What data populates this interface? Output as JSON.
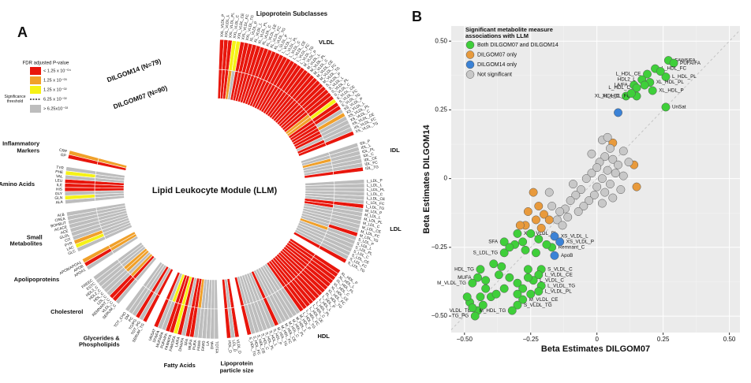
{
  "chart_data": [
    {
      "type": "heatmap",
      "panel": "A",
      "header": "Lipoprotein Subclasses",
      "title": "Lipid Leukocyte Module (LLM)",
      "rings": [
        "DILGOM07 (N=90)",
        "DILGOM14 (N=79)"
      ],
      "legend": {
        "title": "FDR adjusted P-value",
        "levels": [
          {
            "label": "< 1.25 x 10⁻⁰⁴",
            "color": "#e8160c"
          },
          {
            "label": "1.25 x 10⁻⁰³",
            "color": "#f0a02a"
          },
          {
            "label": "1.25 x 10⁻⁰²",
            "color": "#f6f216"
          },
          {
            "label": "> 6.25x10⁻⁰²",
            "color": "#bdbdbd"
          }
        ],
        "threshold": {
          "label": "6.25 x 10⁻⁰²",
          "name": "Significance threshold"
        }
      },
      "groups": [
        {
          "label": "VLDL",
          "names": [
            "XXL_VLDL_P",
            "XXL_VLDL_L",
            "XXL_VLDL_PL",
            "XXL_VLDL_C",
            "XXL_VLDL_CE",
            "XXL_VLDL_FC",
            "XXL_VLDL_TG",
            "XL_VLDL_P",
            "XL_VLDL_L",
            "XL_VLDL_PL",
            "XL_VLDL_C",
            "XL_VLDL_CE",
            "XL_VLDL_FC",
            "XL_VLDL_TG",
            "L_VLDL_P",
            "L_VLDL_L",
            "L_VLDL_PL",
            "L_VLDL_C",
            "L_VLDL_CE",
            "L_VLDL_FC",
            "L_VLDL_TG",
            "M_VLDL_P",
            "M_VLDL_L",
            "M_VLDL_PL",
            "M_VLDL_C",
            "M_VLDL_CE",
            "M_VLDL_FC",
            "M_VLDL_TG",
            "S_VLDL_P",
            "S_VLDL_L",
            "S_VLDL_PL",
            "S_VLDL_C",
            "S_VLDL_CE",
            "S_VLDL_FC",
            "S_VLDL_TG",
            "XS_VLDL_P",
            "XS_VLDL_L",
            "XS_VLDL_PL",
            "XS_VLDL_C",
            "XS_VLDL_CE",
            "XS_VLDL_FC",
            "XS_VLDL_TG"
          ],
          "dilgom07": [
            0,
            0,
            0,
            1,
            3,
            0,
            0,
            0,
            0,
            0,
            0,
            0,
            0,
            0,
            0,
            0,
            0,
            0,
            0,
            0,
            0,
            0,
            0,
            0,
            0,
            0,
            0,
            0,
            0,
            0,
            0,
            1,
            1,
            0,
            0,
            0,
            0,
            0,
            0,
            3,
            0,
            0
          ],
          "dilgom14": [
            0,
            0,
            0,
            2,
            2,
            0,
            0,
            0,
            0,
            0,
            0,
            0,
            0,
            0,
            0,
            0,
            0,
            0,
            0,
            0,
            0,
            0,
            0,
            0,
            0,
            0,
            0,
            0,
            0,
            0,
            0,
            0,
            2,
            0,
            0,
            3,
            1,
            3,
            3,
            3,
            3,
            0
          ]
        },
        {
          "label": "IDL",
          "names": [
            "IDL_P",
            "IDL_L",
            "IDL_PL",
            "IDL_C",
            "IDL_CE",
            "IDL_FC",
            "IDL_TG"
          ],
          "dilgom07": [
            3,
            3,
            1,
            3,
            3,
            3,
            0
          ],
          "dilgom14": [
            3,
            3,
            3,
            3,
            3,
            3,
            0
          ]
        },
        {
          "label": "LDL",
          "names": [
            "L_LDL_P",
            "L_LDL_L",
            "L_LDL_PL",
            "L_LDL_C",
            "L_LDL_CE",
            "L_LDL_FC",
            "L_LDL_TG",
            "M_LDL_P",
            "M_LDL_L",
            "M_LDL_PL",
            "M_LDL_C",
            "M_LDL_CE",
            "M_LDL_FC",
            "M_LDL_TG",
            "S_LDL_P",
            "S_LDL_L",
            "S_LDL_PL",
            "S_LDL_C",
            "S_LDL_CE",
            "S_LDL_FC",
            "S_LDL_TG"
          ],
          "dilgom07": [
            3,
            3,
            3,
            3,
            3,
            3,
            0,
            0,
            3,
            3,
            3,
            3,
            3,
            3,
            1,
            3,
            3,
            3,
            3,
            3,
            0
          ],
          "dilgom14": [
            3,
            3,
            3,
            3,
            3,
            3,
            0,
            3,
            3,
            3,
            3,
            3,
            3,
            0,
            3,
            3,
            3,
            3,
            3,
            3,
            0
          ]
        },
        {
          "label": "HDL",
          "names": [
            "XL_HDL_P",
            "XL_HDL_L",
            "XL_HDL_PL",
            "XL_HDL_C",
            "XL_HDL_CE",
            "XL_HDL_FC",
            "XL_HDL_TG",
            "L_HDL_P",
            "L_HDL_L",
            "L_HDL_PL",
            "L_HDL_C",
            "L_HDL_CE",
            "L_HDL_FC",
            "L_HDL_TG",
            "M_HDL_P",
            "M_HDL_L",
            "M_HDL_PL",
            "M_HDL_C",
            "M_HDL_CE",
            "M_HDL_FC",
            "M_HDL_TG",
            "S_HDL_P",
            "S_HDL_L",
            "S_HDL_PL",
            "S_HDL_C",
            "S_HDL_CE",
            "S_HDL_FC",
            "S_HDL_TG"
          ],
          "dilgom07": [
            0,
            0,
            0,
            0,
            0,
            0,
            0,
            0,
            0,
            0,
            0,
            0,
            0,
            0,
            3,
            3,
            3,
            3,
            3,
            3,
            0,
            3,
            3,
            3,
            3,
            3,
            3,
            0
          ],
          "dilgom14": [
            0,
            0,
            0,
            0,
            0,
            0,
            0,
            0,
            0,
            0,
            0,
            0,
            0,
            0,
            3,
            3,
            3,
            3,
            3,
            3,
            0,
            3,
            3,
            3,
            3,
            3,
            3,
            0
          ]
        },
        {
          "label": "Lipoprotein particle size",
          "names": [
            "VLDL_D",
            "LDL_D",
            "HDL_D"
          ],
          "dilgom07": [
            0,
            3,
            0
          ],
          "dilgom14": [
            0,
            3,
            0
          ]
        },
        {
          "label": "Fatty Acids",
          "names": [
            "TOTFA",
            "DHA",
            "LA",
            "FAW3",
            "FAW6",
            "PUFA",
            "MUFA",
            "SFA",
            "DHA/FA",
            "LA/FA",
            "FAW3/FA",
            "FAW6/FA",
            "PUFA/FA",
            "MUFA/FA",
            "SFA/FA",
            "UNSAT"
          ],
          "dilgom07": [
            3,
            3,
            3,
            3,
            3,
            1,
            0,
            0,
            3,
            0,
            2,
            0,
            0,
            2,
            3,
            0
          ],
          "dilgom14": [
            3,
            3,
            3,
            3,
            3,
            3,
            0,
            0,
            3,
            0,
            2,
            0,
            0,
            3,
            3,
            0
          ]
        },
        {
          "label": "Glycerides & Phospholipids",
          "names": [
            "SERUM_TG",
            "TOT_PG",
            "TG/PG",
            "PC",
            "SM",
            "TOT_CHO"
          ],
          "dilgom07": [
            0,
            3,
            0,
            3,
            3,
            3
          ],
          "dilgom14": [
            0,
            3,
            0,
            3,
            3,
            3
          ]
        },
        {
          "label": "Cholesterol",
          "names": [
            "SERUM_C",
            "VLDL_C",
            "REMNANT_C",
            "LDL_C",
            "HDL_C",
            "HDL2_C",
            "HDL3_C",
            "ESTC",
            "FREEC"
          ],
          "dilgom07": [
            3,
            0,
            1,
            3,
            1,
            1,
            3,
            3,
            3
          ],
          "dilgom14": [
            3,
            0,
            0,
            3,
            3,
            3,
            3,
            3,
            3
          ]
        },
        {
          "label": "Apolipoproteins",
          "names": [
            "APOA1",
            "APOB",
            "APOB/APOA1"
          ],
          "dilgom07": [
            3,
            1,
            1
          ],
          "dilgom14": [
            3,
            0,
            1
          ]
        },
        {
          "label": "Small Metabolites",
          "names": [
            "GLC",
            "LAC",
            "PYR",
            "CIT",
            "GLOL",
            "ACE",
            "ACACE",
            "BOHBUT",
            "CREA",
            "ALB"
          ],
          "dilgom07": [
            3,
            3,
            3,
            3,
            3,
            3,
            3,
            3,
            3,
            3
          ],
          "dilgom14": [
            3,
            2,
            1,
            3,
            3,
            3,
            3,
            3,
            3,
            3
          ]
        },
        {
          "label": "Amino Acids",
          "names": [
            "ALA",
            "GLN",
            "GLY",
            "HIS",
            "ILE",
            "LEU",
            "VAL",
            "PHE",
            "TYR"
          ],
          "dilgom07": [
            3,
            3,
            3,
            0,
            0,
            0,
            3,
            3,
            3
          ],
          "dilgom14": [
            3,
            2,
            3,
            0,
            0,
            0,
            3,
            2,
            3
          ]
        },
        {
          "label": "Inflammatory Markers",
          "names": [
            "GP",
            "CRP"
          ],
          "dilgom07": [
            0,
            1
          ],
          "dilgom14": [
            0,
            1
          ]
        }
      ]
    },
    {
      "type": "scatter",
      "panel": "B",
      "x_label": "Beta Estimates DILGOM07",
      "y_label": "Beta Estimates DILGOM14",
      "legend_title": "Significant metabolite measure associations with LLM",
      "grid": true,
      "xlim": [
        -0.55,
        0.54
      ],
      "ylim": [
        -0.56,
        0.555
      ],
      "xticks": [
        {
          "value": -0.5,
          "label": "−0.50"
        },
        {
          "value": -0.25,
          "label": "−0.25"
        },
        0,
        {
          "value": 0.25,
          "label": "0.25"
        },
        {
          "value": 0.5,
          "label": "0.50"
        }
      ],
      "yticks": [
        {
          "value": -0.5,
          "label": "−0.50"
        },
        {
          "value": -0.25,
          "label": "−0.25"
        },
        0,
        {
          "value": 0.25,
          "label": "0.25"
        },
        {
          "value": 0.5,
          "label": "0.50"
        }
      ],
      "series": [
        {
          "name": "Both DILGOM07 and DILGOM14",
          "color": "#3fcf3a",
          "x": [
            0.27,
            0.29,
            0.22,
            0.19,
            0.17,
            0.26,
            0.14,
            0.15,
            0.2,
            0.21,
            0.11,
            0.15,
            0.26,
            0.18,
            0.13,
            0.24,
            -0.3,
            -0.35,
            -0.35,
            -0.44,
            -0.45,
            -0.47,
            -0.45,
            -0.46,
            -0.21,
            -0.22,
            -0.24,
            -0.21,
            -0.22,
            -0.28,
            -0.3,
            -0.32,
            -0.17,
            -0.25,
            -0.22,
            -0.28,
            -0.31,
            -0.27,
            -0.23,
            -0.33,
            -0.19,
            -0.39,
            -0.37,
            -0.42,
            -0.4,
            -0.44,
            -0.48,
            -0.47,
            -0.49,
            -0.43,
            -0.38,
            -0.33,
            -0.3,
            -0.26,
            -0.28,
            -0.25,
            -0.35,
            -0.26,
            -0.36,
            -0.42,
            -0.3
          ],
          "values": [
            0.43,
            0.42,
            0.4,
            0.38,
            0.36,
            0.37,
            0.34,
            0.33,
            0.35,
            0.32,
            0.3,
            0.3,
            0.26,
            0.34,
            0.31,
            0.39,
            -0.2,
            -0.23,
            -0.27,
            -0.33,
            -0.36,
            -0.38,
            -0.48,
            -0.5,
            -0.33,
            -0.35,
            -0.37,
            -0.39,
            -0.41,
            -0.44,
            -0.46,
            -0.48,
            -0.25,
            -0.2,
            -0.22,
            -0.23,
            -0.24,
            -0.26,
            -0.27,
            -0.25,
            -0.24,
            -0.31,
            -0.35,
            -0.4,
            -0.43,
            -0.43,
            -0.45,
            -0.47,
            -0.43,
            -0.46,
            -0.42,
            -0.36,
            -0.38,
            -0.36,
            -0.4,
            -0.42,
            -0.4,
            -0.33,
            -0.32,
            -0.37,
            -0.42
          ],
          "labels": [
            "FAW6/FA",
            "PUFA/FA",
            "L_HDL_FC",
            "L_HDL_CE",
            "HDL2_L",
            "L_HDL_PL",
            "LA/FA",
            "L_HDL_C",
            "XL_HDL_PL",
            "XL_HDL_P",
            "XL_HDL_C",
            "XL_HDL_FC",
            "UnSat",
            null,
            null,
            null,
            "XXL_VLDL_PL",
            "SFA",
            "S_LDL_TG",
            "HDL_TG",
            "MUFA",
            "M_VLDL_TG",
            "VLDL_TG",
            "TG_PG",
            "S_VLDL_C",
            "L_VLDL_CE",
            "L_VLDL_C",
            "L_VLDL_TG",
            "L_VLDL_PL",
            "M_VLDL_CE",
            "S_VLDL_TG",
            "M_HDL_TG",
            "Remnant_C",
            null,
            null,
            null,
            null,
            null,
            null,
            null,
            null,
            null,
            null,
            null,
            null,
            null,
            null,
            null,
            null,
            null,
            null,
            null,
            null,
            null,
            null,
            null,
            null,
            null,
            null,
            null,
            null
          ]
        },
        {
          "name": "DILGOM07 only",
          "color": "#e89a3c",
          "x": [
            -0.24,
            -0.22,
            -0.26,
            -0.2,
            -0.23,
            -0.27,
            -0.29,
            -0.21,
            -0.18,
            0.06,
            0.14,
            0.15
          ],
          "values": [
            -0.05,
            -0.1,
            -0.12,
            -0.13,
            -0.15,
            -0.17,
            -0.17,
            -0.18,
            -0.15,
            0.13,
            0.05,
            -0.03
          ],
          "labels": [
            null,
            null,
            null,
            null,
            null,
            null,
            null,
            null,
            null,
            null,
            null,
            null
          ]
        },
        {
          "name": "DILGOM14 only",
          "color": "#3b82d6",
          "x": [
            -0.16,
            -0.14,
            -0.16,
            0.08
          ],
          "values": [
            -0.21,
            -0.23,
            -0.28,
            0.24
          ],
          "labels": [
            "XS_VLDL_L",
            "XS_VLDL_P",
            "ApoB",
            null
          ]
        },
        {
          "name": "Not significant",
          "color": "#c8c8c8",
          "x": [
            0.02,
            0.04,
            0.05,
            0.03,
            0.06,
            0.01,
            0.08,
            0.04,
            0.07,
            0.02,
            0.1,
            0.05,
            0.09,
            0.0,
            0.03,
            -0.02,
            -0.04,
            -0.01,
            -0.06,
            -0.03,
            -0.08,
            -0.05,
            -0.1,
            -0.07,
            -0.12,
            -0.11,
            -0.14,
            -0.15,
            -0.13,
            -0.17,
            0.06,
            0.12,
            -0.02,
            -0.09,
            0.0,
            0.02,
            -0.18,
            0.1
          ],
          "values": [
            0.14,
            0.15,
            0.11,
            0.08,
            0.07,
            0.06,
            0.05,
            0.03,
            0.02,
            0.0,
            0.01,
            -0.02,
            -0.04,
            -0.03,
            -0.05,
            0.02,
            0.0,
            -0.06,
            -0.04,
            -0.08,
            -0.06,
            -0.1,
            -0.08,
            -0.12,
            -0.11,
            -0.14,
            -0.12,
            -0.15,
            -0.17,
            -0.1,
            -0.07,
            0.06,
            0.09,
            -0.02,
            0.04,
            -0.09,
            -0.05,
            0.1
          ],
          "labels": [
            null,
            null,
            null,
            null,
            null,
            null,
            null,
            null,
            null,
            null,
            null,
            null,
            null,
            null,
            null,
            null,
            null,
            null,
            null,
            null,
            null,
            null,
            null,
            null,
            null,
            null,
            null,
            null,
            null,
            null,
            null,
            null,
            null,
            null,
            null,
            null,
            null,
            null
          ]
        }
      ]
    }
  ]
}
